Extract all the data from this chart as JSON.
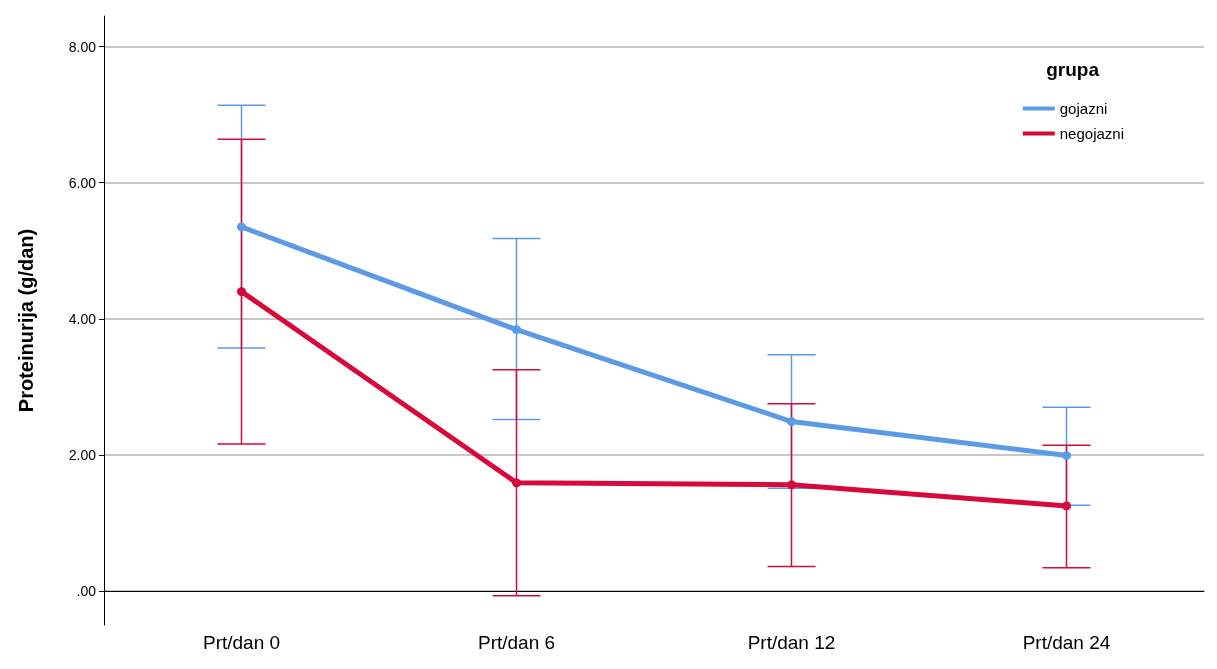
{
  "chart_data": {
    "type": "line",
    "ylabel": "Proteinurija (g/dan)",
    "legend_title": "grupa",
    "categories": [
      "Prt/dan 0",
      "Prt/dan 6",
      "Prt/dan 12",
      "Prt/dan 24"
    ],
    "series": [
      {
        "name": "gojazni",
        "color": "#5b9be6",
        "values": [
          5.35,
          3.84,
          2.49,
          1.99
        ],
        "errors": [
          [
            3.57,
            7.14
          ],
          [
            2.52,
            5.18
          ],
          [
            1.51,
            3.47
          ],
          [
            1.26,
            2.7
          ]
        ]
      },
      {
        "name": "negojazni",
        "color": "#d6093a",
        "values": [
          4.4,
          1.59,
          1.56,
          1.25
        ],
        "errors": [
          [
            2.16,
            6.64
          ],
          [
            -0.07,
            3.25
          ],
          [
            0.36,
            2.75
          ],
          [
            0.34,
            2.14
          ]
        ]
      }
    ],
    "ylim": [
      -0.5,
      8.45
    ],
    "yticks": [
      {
        "value": 0,
        "label": ".00"
      },
      {
        "value": 2,
        "label": "2.00"
      },
      {
        "value": 4,
        "label": "4.00"
      },
      {
        "value": 6,
        "label": "6.00"
      },
      {
        "value": 8,
        "label": "8.00"
      }
    ],
    "grid": "y",
    "legend": "top right",
    "marker": "circle",
    "line_style": "solid"
  }
}
